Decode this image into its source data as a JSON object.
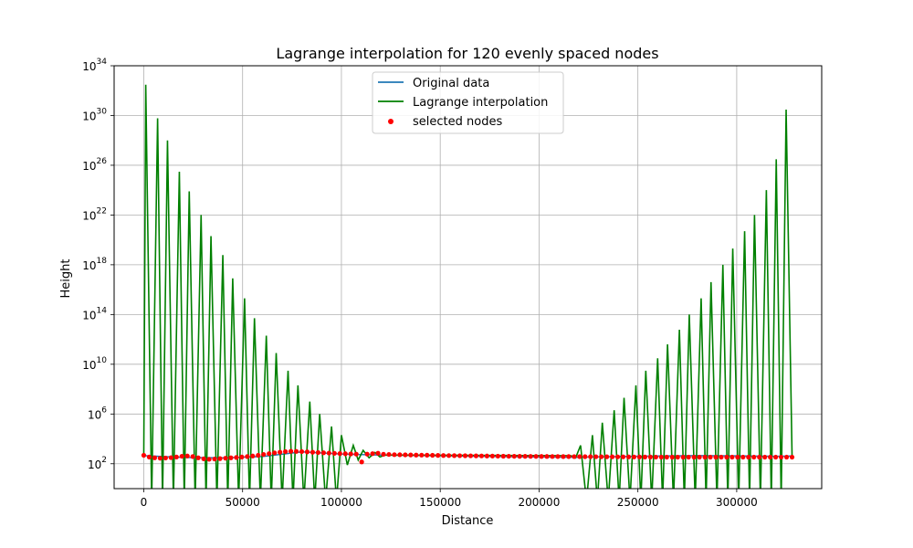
{
  "chart_data": {
    "type": "line",
    "title": "Lagrange interpolation for 120 evenly spaced nodes",
    "xlabel": "Distance",
    "ylabel": "Height",
    "xlim": [
      -15000,
      343000
    ],
    "ylim": [
      1,
      1e+34
    ],
    "yscale": "log",
    "grid": true,
    "legend_position": "top-center",
    "x_ticks": [
      0,
      50000,
      100000,
      150000,
      200000,
      250000,
      300000
    ],
    "x_tick_labels": [
      "0",
      "50000",
      "100000",
      "150000",
      "200000",
      "250000",
      "300000"
    ],
    "y_ticks": [
      100,
      1000000,
      10000000000,
      100000000000000.0,
      1e+18,
      1e+22,
      1e+26,
      1e+30,
      1e+34
    ],
    "y_tick_labels": [
      {
        "base": "10",
        "exp": "2"
      },
      {
        "base": "10",
        "exp": "6"
      },
      {
        "base": "10",
        "exp": "10"
      },
      {
        "base": "10",
        "exp": "14"
      },
      {
        "base": "10",
        "exp": "18"
      },
      {
        "base": "10",
        "exp": "22"
      },
      {
        "base": "10",
        "exp": "26"
      },
      {
        "base": "10",
        "exp": "30"
      },
      {
        "base": "10",
        "exp": "34"
      }
    ],
    "series": [
      {
        "name": "Original data",
        "kind": "line",
        "color": "#1f77b4",
        "x": [
          0,
          20000,
          40000,
          60000,
          80000,
          100000,
          120000,
          140000,
          160000,
          180000,
          200000,
          220000,
          240000,
          260000,
          280000,
          300000,
          320000,
          328000
        ],
        "y": [
          450,
          320,
          300,
          380,
          900,
          600,
          500,
          460,
          420,
          380,
          350,
          330,
          380,
          420,
          450,
          430,
          400,
          420
        ]
      },
      {
        "name": "Lagrange interpolation",
        "kind": "line",
        "color": "#008000",
        "peaks_x": [
          1000,
          7000,
          12000,
          18000,
          23000,
          29000,
          34000,
          40000,
          45000,
          51000,
          56000,
          62000,
          67000,
          73000,
          78000,
          84000,
          89000,
          95000,
          100000,
          106000,
          111000,
          117000,
          122000,
          216000,
          221000,
          227000,
          232000,
          238000,
          243000,
          249000,
          254000,
          260000,
          265000,
          271000,
          276000,
          282000,
          287000,
          293000,
          298000,
          304000,
          309000,
          315000,
          320000,
          325000
        ],
        "peaks_y": [
          3e+32,
          6e+29,
          1e+28,
          3e+25,
          8e+23,
          1e+22,
          2e+20,
          6e+18,
          8e+16,
          2000000000000000.0,
          50000000000000.0,
          2000000000000.0,
          80000000000.0,
          3000000000.0,
          200000000.0,
          10000000.0,
          1000000,
          100000,
          20000,
          3000,
          1200,
          800,
          500,
          450,
          3000,
          20000,
          200000,
          2000000,
          20000000,
          200000000,
          3000000000,
          30000000000,
          400000000000,
          6000000000000,
          100000000000000,
          2000000000000000,
          40000000000000000,
          1000000000000000000,
          20000000000000000000,
          500000000000000000000,
          1e+22,
          1e+24,
          3e+26,
          3e+30
        ],
        "troughs_x": [
          4000,
          9500,
          15000,
          20500,
          26000,
          31500,
          37000,
          42500,
          48000,
          53500,
          59000,
          64500,
          70000,
          75500,
          81000,
          86500,
          92000,
          97500,
          103000,
          108500,
          114000,
          119500,
          218500,
          224000,
          229500,
          235000,
          240500,
          246000,
          251500,
          257000,
          262500,
          268000,
          273500,
          279000,
          284500,
          290000,
          295500,
          301000,
          306500,
          312000,
          317500,
          322500
        ],
        "troughs_y": [
          0.1,
          0.1,
          0.1,
          0.1,
          0.1,
          0.1,
          0.1,
          0.1,
          0.1,
          0.1,
          0.1,
          0.1,
          0.1,
          0.1,
          0.1,
          0.1,
          0.1,
          0.1,
          80,
          200,
          300,
          350,
          300,
          0.1,
          0.1,
          0.1,
          0.1,
          0.1,
          0.1,
          0.1,
          0.1,
          0.1,
          0.1,
          0.1,
          0.1,
          0.1,
          0.1,
          0.1,
          0.1,
          0.1,
          0.1,
          0.1
        ]
      },
      {
        "name": "selected nodes",
        "kind": "scatter",
        "color": "#ff0000",
        "count": 120,
        "x_start": 0,
        "x_end": 328000,
        "y": [
          480,
          350,
          300,
          280,
          290,
          310,
          350,
          400,
          420,
          380,
          300,
          250,
          230,
          240,
          260,
          280,
          300,
          320,
          350,
          380,
          420,
          480,
          560,
          650,
          750,
          850,
          950,
          1000,
          980,
          950,
          900,
          850,
          800,
          760,
          720,
          690,
          660,
          640,
          620,
          600,
          140,
          600,
          650,
          700,
          580,
          560,
          540,
          530,
          520,
          510,
          500,
          495,
          490,
          480,
          470,
          460,
          455,
          450,
          445,
          440,
          435,
          430,
          425,
          420,
          415,
          410,
          405,
          400,
          398,
          396,
          394,
          392,
          390,
          388,
          386,
          384,
          382,
          380,
          378,
          376,
          374,
          372,
          370,
          368,
          366,
          364,
          362,
          360,
          358,
          356,
          354,
          352,
          350,
          348,
          346,
          344,
          342,
          340,
          340,
          340,
          340,
          340,
          340,
          340,
          340,
          340,
          340,
          340,
          340,
          340,
          340,
          340,
          340,
          340,
          340,
          340,
          340,
          340,
          340,
          340
        ]
      }
    ]
  }
}
